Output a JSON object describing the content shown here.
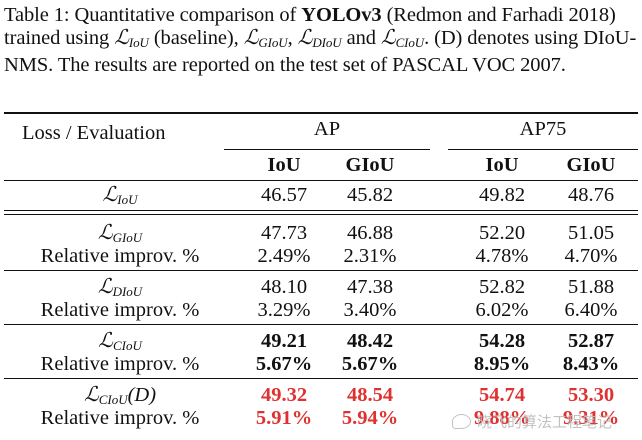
{
  "caption": {
    "prefix": "Table 1: Quantitative comparison of ",
    "model": "YOLOv3",
    "cite": " (Redmon and Farhadi 2018) trained using ",
    "L": "ℒ",
    "sub_iou": "IoU",
    "baseline": " (baseline), ",
    "sub_giou": "GIoU",
    "comma": ", ",
    "sub_diou": "DIoU",
    "and": " and ",
    "sub_ciou": "CIoU",
    "rest": ". (D) denotes using DIoU-NMS. The results are reported on the test set of PASCAL VOC 2007."
  },
  "table": {
    "header_col": "Loss / Evaluation",
    "groups": [
      "AP",
      "AP75"
    ],
    "subcols": [
      "IoU",
      "GIoU",
      "IoU",
      "GIoU"
    ],
    "rows": [
      {
        "label_L": "ℒ",
        "label_sub": "IoU",
        "label_suffix": "",
        "values": [
          "46.57",
          "45.82",
          "49.82",
          "48.76"
        ],
        "style": "normal"
      },
      {
        "label_L": "ℒ",
        "label_sub": "GIoU",
        "label_suffix": "",
        "values": [
          "47.73",
          "46.88",
          "52.20",
          "51.05"
        ],
        "style": "normal"
      },
      {
        "label": "Relative improv. %",
        "values": [
          "2.49%",
          "2.31%",
          "4.78%",
          "4.70%"
        ],
        "style": "normal"
      },
      {
        "label_L": "ℒ",
        "label_sub": "DIoU",
        "label_suffix": "",
        "values": [
          "48.10",
          "47.38",
          "52.82",
          "51.88"
        ],
        "style": "normal"
      },
      {
        "label": "Relative improv. %",
        "values": [
          "3.29%",
          "3.40%",
          "6.02%",
          "6.40%"
        ],
        "style": "normal"
      },
      {
        "label_L": "ℒ",
        "label_sub": "CIoU",
        "label_suffix": "",
        "values": [
          "49.21",
          "48.42",
          "54.28",
          "52.87"
        ],
        "style": "bold"
      },
      {
        "label": "Relative improv. %",
        "values": [
          "5.67%",
          "5.67%",
          "8.95%",
          "8.43%"
        ],
        "style": "bold"
      },
      {
        "label_L": "ℒ",
        "label_sub": "CIoU",
        "label_suffix": "(D)",
        "values": [
          "49.32",
          "48.54",
          "54.74",
          "53.30"
        ],
        "style": "red"
      },
      {
        "label": "Relative improv. %",
        "values": [
          "5.91%",
          "5.94%",
          "9.88%",
          "9.31%"
        ],
        "style": "red"
      }
    ]
  },
  "colors": {
    "highlight": "#e03131",
    "text": "#111111",
    "watermark": "#bbbbbb"
  },
  "watermark": {
    "icon": "wechat-icon",
    "text": "晓飞的算法工程笔记"
  }
}
